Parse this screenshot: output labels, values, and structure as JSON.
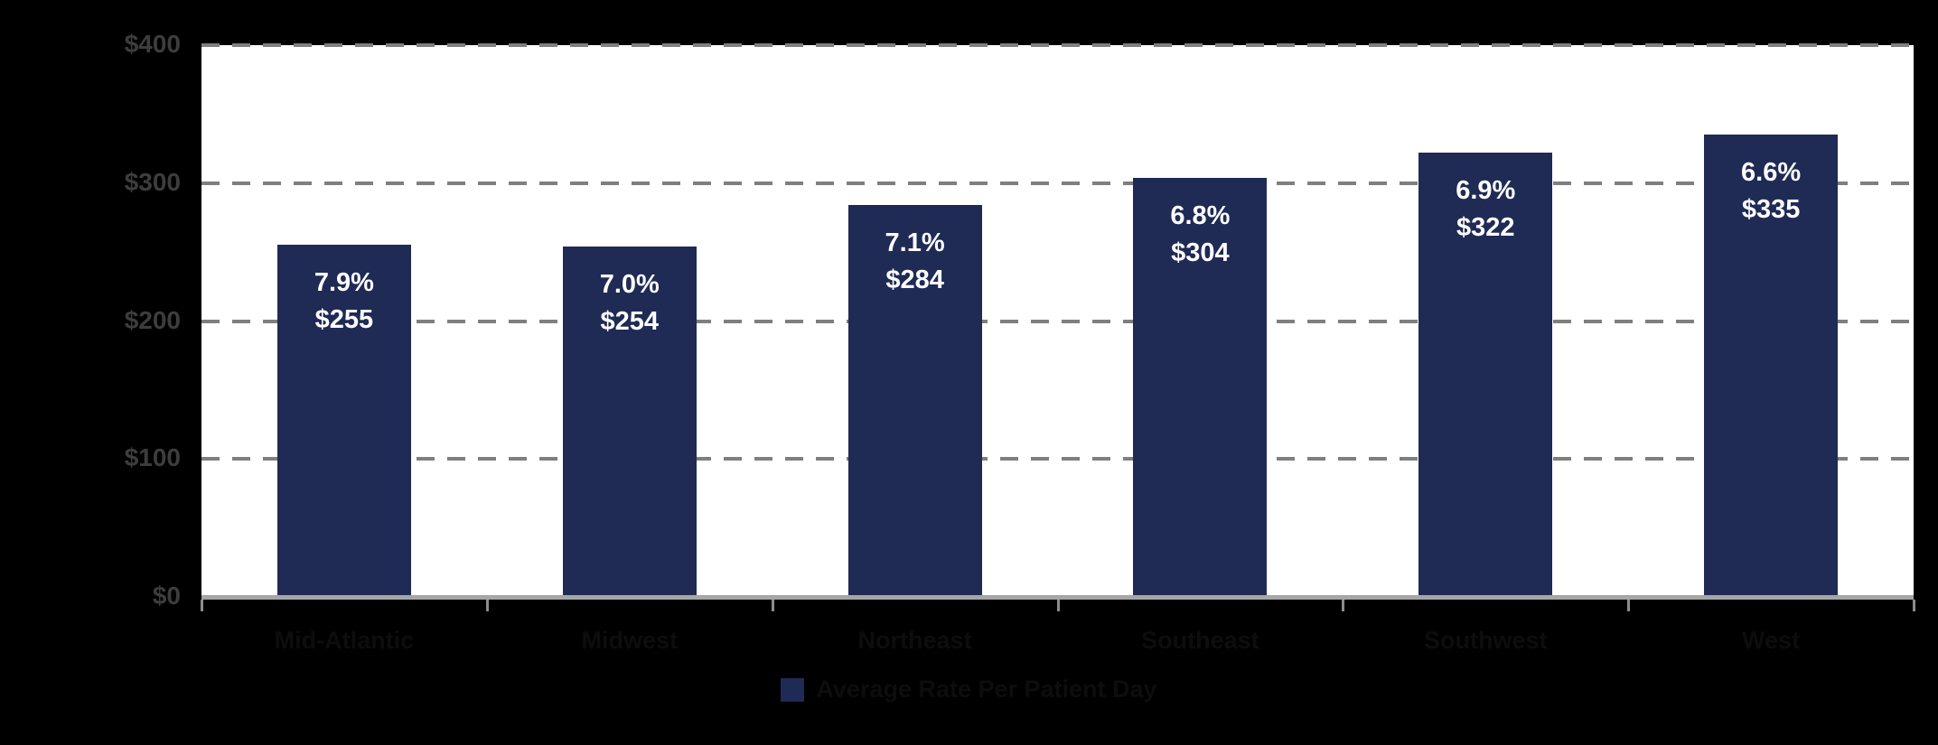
{
  "chart_data": {
    "type": "bar",
    "title": "",
    "categories": [
      "Mid-Atlantic",
      "Midwest",
      "Northeast",
      "Southeast",
      "Southwest",
      "West"
    ],
    "series": [
      {
        "name": "Average Rate Per Patient Day",
        "values": [
          255,
          254,
          284,
          304,
          322,
          335
        ]
      }
    ],
    "bar_labels": [
      {
        "pct": "7.9%",
        "value": "$255"
      },
      {
        "pct": "7.0%",
        "value": "$254"
      },
      {
        "pct": "7.1%",
        "value": "$284"
      },
      {
        "pct": "6.8%",
        "value": "$304"
      },
      {
        "pct": "6.9%",
        "value": "$322"
      },
      {
        "pct": "6.6%",
        "value": "$335"
      }
    ],
    "xlabel": "",
    "ylabel": "",
    "ylim": [
      0,
      400
    ],
    "y_ticks": [
      {
        "value": 400,
        "label": "$400"
      },
      {
        "value": 300,
        "label": "$300"
      },
      {
        "value": 200,
        "label": "$200"
      },
      {
        "value": 100,
        "label": "$100"
      },
      {
        "value": 0,
        "label": "$0"
      }
    ],
    "grid": "horizontal-dashed",
    "legend": {
      "position": "bottom-center",
      "entries": [
        {
          "label": "Average Rate Per Patient Day",
          "swatch": "#1F2A55"
        }
      ]
    },
    "colors": {
      "background": "#000000",
      "plot_background": "#FFFFFF",
      "bar": "#1F2A55",
      "bar_label_text": "#FFFFFF",
      "gridline": "#7F7F7F",
      "axis_line": "#A6A6A6",
      "y_tick_label": "#3D3D3D",
      "x_tick_label": "#0D0D0D",
      "legend_text": "#0D0D0D"
    }
  }
}
